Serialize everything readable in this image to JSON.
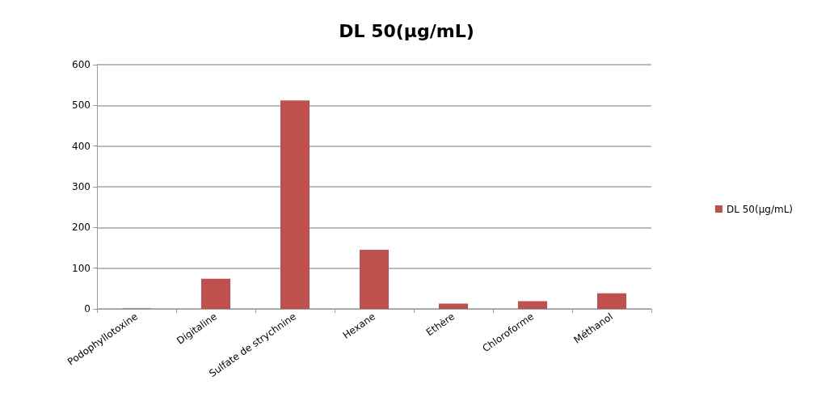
{
  "chart_data": {
    "type": "bar",
    "title": "DL 50(µg/mL)",
    "categories": [
      "Podophyllotoxine",
      "Digitaline",
      "Sulfate de strychnine",
      "Hexane",
      "Ethère",
      "Chloroforme",
      "Méthanol"
    ],
    "series": [
      {
        "name": "DL 50(µg/mL)",
        "color": "#c0504d",
        "values": [
          1,
          74,
          512,
          145,
          13,
          19,
          38
        ]
      }
    ],
    "ylim": [
      0,
      600
    ],
    "yticks": [
      0,
      100,
      200,
      300,
      400,
      500,
      600
    ],
    "grid": "y",
    "legend": "right"
  }
}
